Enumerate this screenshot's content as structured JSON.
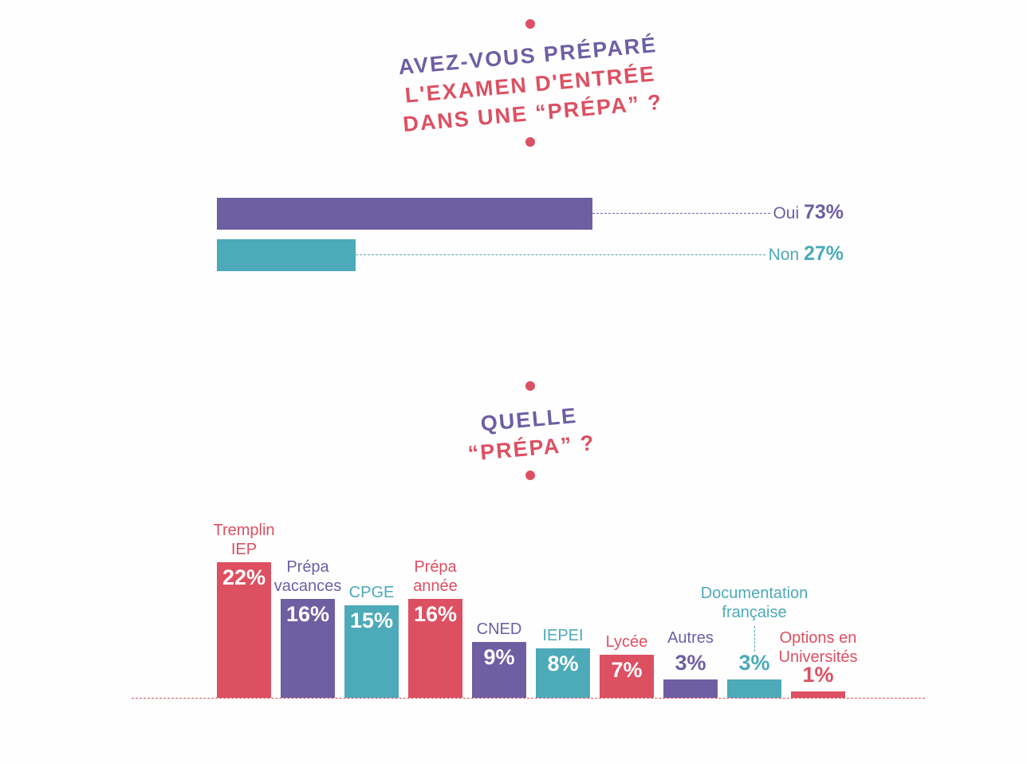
{
  "colors": {
    "red": "#dc5062",
    "purple": "#6e5fa3",
    "teal": "#4daab8"
  },
  "q1": {
    "title_line1": "AVEZ-VOUS PRÉPARÉ",
    "title_line2": "L'EXAMEN D'ENTRÉE",
    "title_line3": "DANS UNE “PRÉPA” ?"
  },
  "q2": {
    "title_line1": "QUELLE",
    "title_line2": "“PRÉPA” ?"
  },
  "chart_data": [
    {
      "type": "bar",
      "orientation": "horizontal",
      "title": "AVEZ-VOUS PRÉPARÉ L'EXAMEN D'ENTRÉE DANS UNE “PRÉPA” ?",
      "categories": [
        "Oui",
        "Non"
      ],
      "values": [
        73,
        27
      ],
      "labels": [
        "73%",
        "27%"
      ],
      "colors": [
        "purple",
        "teal"
      ]
    },
    {
      "type": "bar",
      "title": "QUELLE “PRÉPA” ?",
      "categories": [
        "Tremplin IEP",
        "Prépa vacances",
        "CPGE",
        "Prépa année",
        "CNED",
        "IEPEI",
        "Lycée",
        "Autres",
        "Documentation française",
        "Options en Universités"
      ],
      "values": [
        22,
        16,
        15,
        16,
        9,
        8,
        7,
        3,
        3,
        1
      ],
      "labels": [
        "22%",
        "16%",
        "15%",
        "16%",
        "9%",
        "8%",
        "7%",
        "3%",
        "3%",
        "1%"
      ],
      "colors": [
        "red",
        "purple",
        "teal",
        "red",
        "purple",
        "teal",
        "red",
        "purple",
        "teal",
        "red"
      ]
    }
  ]
}
